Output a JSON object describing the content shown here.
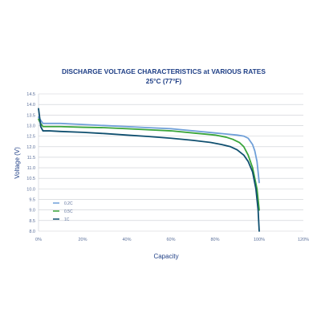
{
  "chart_data": {
    "type": "line",
    "title": "DISCHARGE VOLTAGE CHARACTERISTICS at VARIOUS RATES",
    "subtitle": "25°C (77°F)",
    "xlabel": "Capacity",
    "ylabel": "Voltage (V)",
    "xlim": [
      0,
      120
    ],
    "ylim": [
      8.0,
      14.5
    ],
    "x_ticks": [
      0,
      20,
      40,
      60,
      80,
      100,
      120
    ],
    "x_tick_labels": [
      "0%",
      "20%",
      "40%",
      "60%",
      "80%",
      "100%",
      "120%"
    ],
    "y_ticks": [
      8.0,
      8.5,
      9.0,
      9.5,
      10.0,
      10.5,
      11.0,
      11.5,
      12.0,
      12.5,
      13.0,
      13.5,
      14.0,
      14.5
    ],
    "y_tick_labels": [
      "8.0",
      "8.5",
      "9.0",
      "9.5",
      "10.0",
      "10.5",
      "11.0",
      "11.5",
      "12.0",
      "12.5",
      "13.0",
      "13.5",
      "14.0",
      "14.5"
    ],
    "grid": true,
    "legend_position": "bottom-left",
    "series": [
      {
        "name": "0.2C",
        "color": "#6f9fd8",
        "x": [
          0,
          1,
          2,
          5,
          10,
          20,
          30,
          40,
          50,
          60,
          70,
          80,
          85,
          90,
          93,
          95,
          97,
          98,
          99,
          100
        ],
        "y": [
          13.4,
          13.25,
          13.1,
          13.1,
          13.1,
          13.05,
          13.0,
          12.95,
          12.9,
          12.85,
          12.75,
          12.65,
          12.6,
          12.55,
          12.5,
          12.4,
          12.1,
          11.8,
          11.3,
          10.3
        ]
      },
      {
        "name": "0.5C",
        "color": "#3aa53a",
        "x": [
          0,
          1,
          2,
          5,
          10,
          20,
          30,
          40,
          50,
          60,
          70,
          80,
          85,
          88,
          91,
          93,
          95,
          97,
          99,
          100
        ],
        "y": [
          13.3,
          13.1,
          12.95,
          12.95,
          12.95,
          12.92,
          12.9,
          12.85,
          12.8,
          12.75,
          12.65,
          12.55,
          12.45,
          12.35,
          12.2,
          12.0,
          11.6,
          11.0,
          10.0,
          9.0
        ]
      },
      {
        "name": "1C",
        "color": "#0f4f6f",
        "x": [
          0,
          0.5,
          1,
          2,
          5,
          10,
          20,
          30,
          40,
          50,
          60,
          70,
          78,
          83,
          87,
          90,
          93,
          95,
          97,
          98.5,
          99.5,
          100
        ],
        "y": [
          13.8,
          13.4,
          12.95,
          12.75,
          12.75,
          12.72,
          12.68,
          12.62,
          12.55,
          12.48,
          12.4,
          12.3,
          12.2,
          12.1,
          12.0,
          11.85,
          11.6,
          11.3,
          10.8,
          10.0,
          9.0,
          8.0
        ]
      }
    ]
  }
}
